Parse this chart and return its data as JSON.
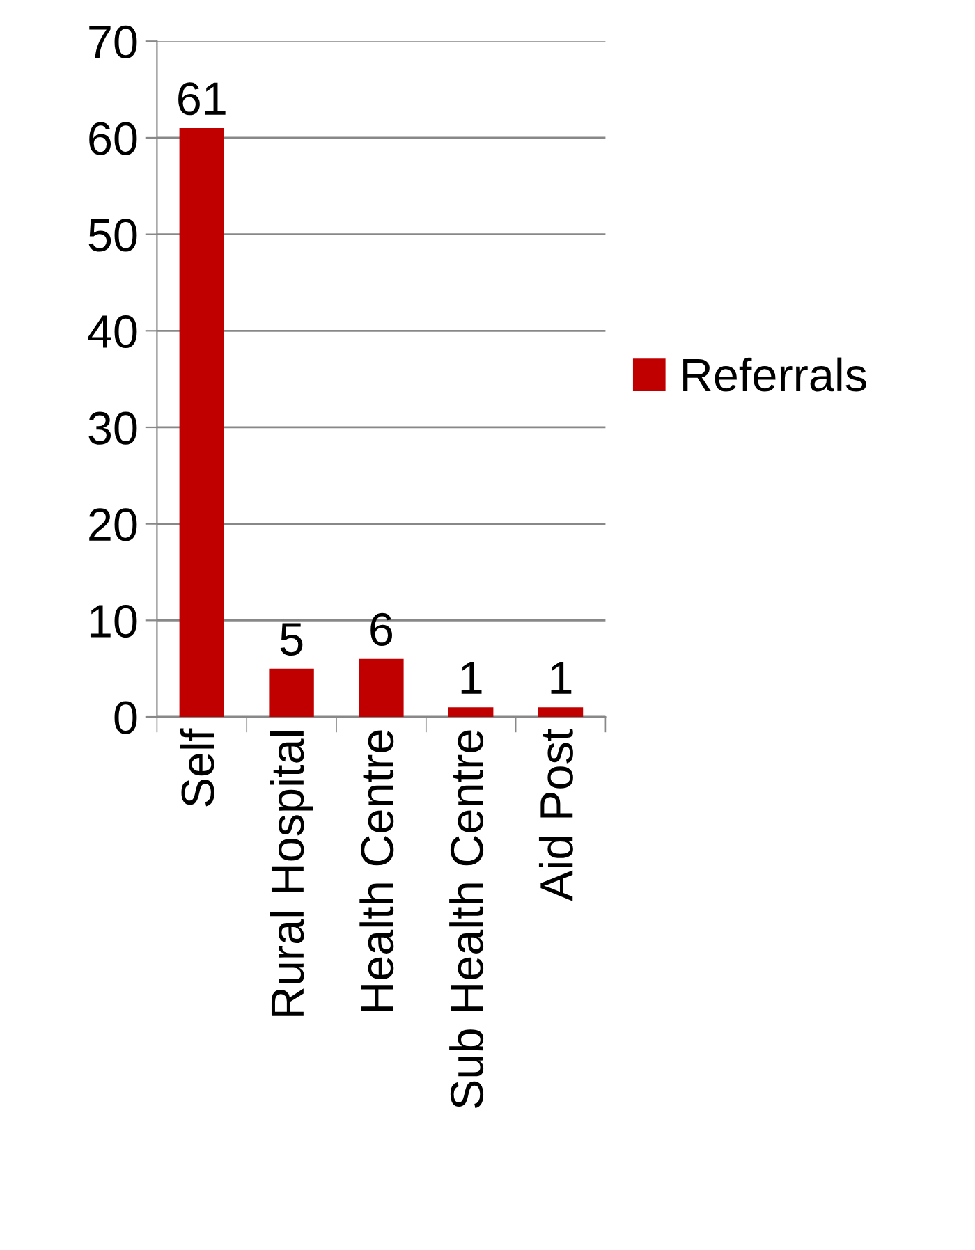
{
  "chart_data": {
    "type": "bar",
    "categories": [
      "Self",
      "Rural Hospital",
      "Health Centre",
      "Sub Health Centre",
      "Aid Post"
    ],
    "series": [
      {
        "name": "Referrals",
        "color": "#c00000",
        "values": [
          61,
          5,
          6,
          1,
          1
        ]
      }
    ],
    "ylim": [
      0,
      70
    ],
    "yticks": [
      0,
      10,
      20,
      30,
      40,
      50,
      60,
      70
    ],
    "grid": "y",
    "legend": "right",
    "data_labels": true
  }
}
